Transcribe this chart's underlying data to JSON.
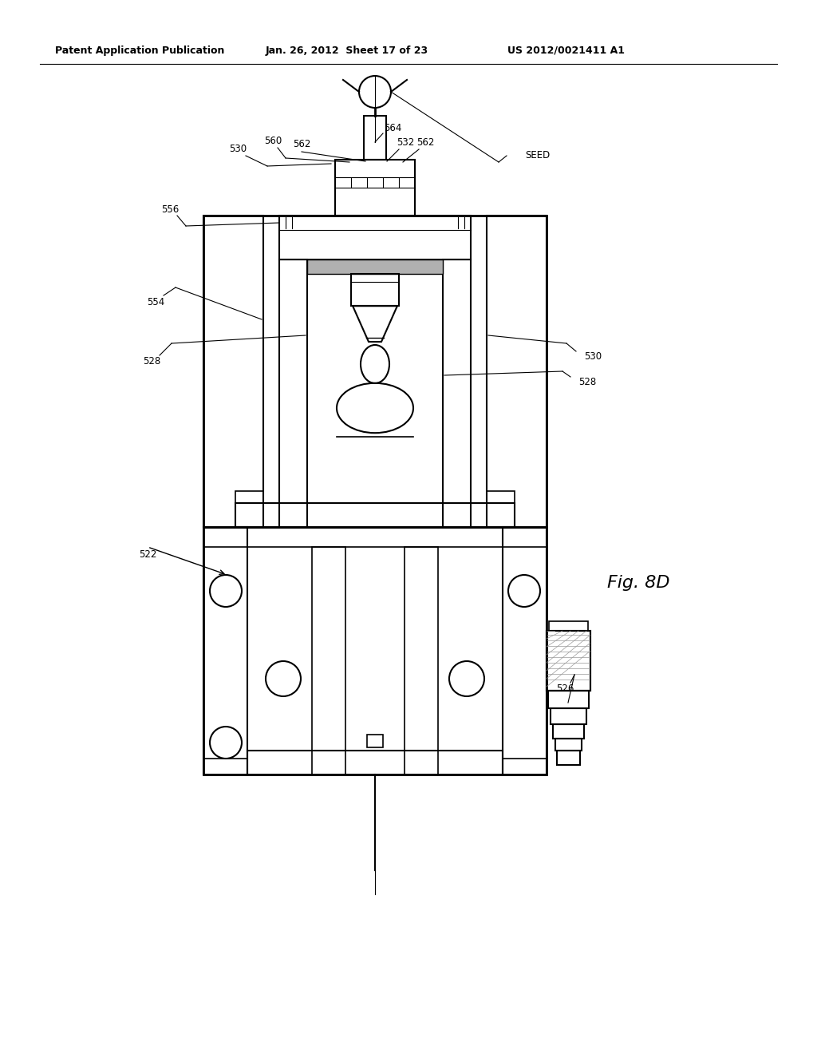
{
  "bg_color": "#ffffff",
  "line_color": "#000000",
  "header_text": "Patent Application Publication",
  "header_date": "Jan. 26, 2012  Sheet 17 of 23",
  "header_patent": "US 2012/0021411 A1",
  "fig_label": "Fig. 8D"
}
